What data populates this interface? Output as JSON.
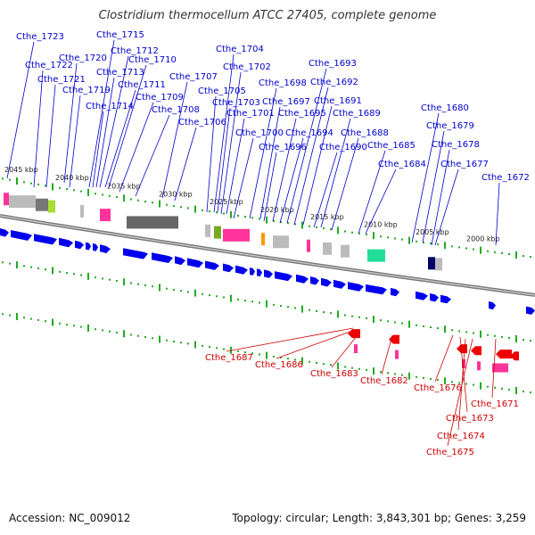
{
  "title": "Clostridium thermocellum ATCC 27405, complete genome",
  "footer": {
    "accession": "Accession: NC_009012",
    "topology": "Topology: circular; Length: 3,843,301 bp; Genes: 3,259"
  },
  "scale_labels": [
    "2045 kbp",
    "2040 kbp",
    "2035 kbp",
    "2030 kbp",
    "2025 kbp",
    "2020 kbp",
    "2015 kbp",
    "2010 kbp",
    "2005 kbp",
    "2000 kbp"
  ],
  "colors": {
    "forward_label": "#0000cc",
    "reverse_label": "#cc0000",
    "cds_forward": "#0000ee",
    "cds_reverse": "#ee0000",
    "backbone": "#888888",
    "tick": "#22aa22"
  },
  "forward_labels": [
    "Cthe_1723",
    "Cthe_1722",
    "Cthe_1721",
    "Cthe_1720",
    "Cthe_1719",
    "Cthe_1715",
    "Cthe_1714",
    "Cthe_1713",
    "Cthe_1712",
    "Cthe_1711",
    "Cthe_1710",
    "Cthe_1709",
    "Cthe_1708",
    "Cthe_1707",
    "Cthe_1706",
    "Cthe_1705",
    "Cthe_1704",
    "Cthe_1703",
    "Cthe_1702",
    "Cthe_1701",
    "Cthe_1700",
    "Cthe_1698",
    "Cthe_1697",
    "Cthe_1696",
    "Cthe_1695",
    "Cthe_1694",
    "Cthe_1693",
    "Cthe_1692",
    "Cthe_1691",
    "Cthe_1690",
    "Cthe_1689",
    "Cthe_1688",
    "Cthe_1685",
    "Cthe_1684",
    "Cthe_1680",
    "Cthe_1679",
    "Cthe_1678",
    "Cthe_1677",
    "Cthe_1672"
  ],
  "reverse_labels": [
    "Cthe_1687",
    "Cthe_1686",
    "Cthe_1683",
    "Cthe_1682",
    "Cthe_1676",
    "Cthe_1673",
    "Cthe_1674",
    "Cthe_1675",
    "Cthe_1671"
  ]
}
